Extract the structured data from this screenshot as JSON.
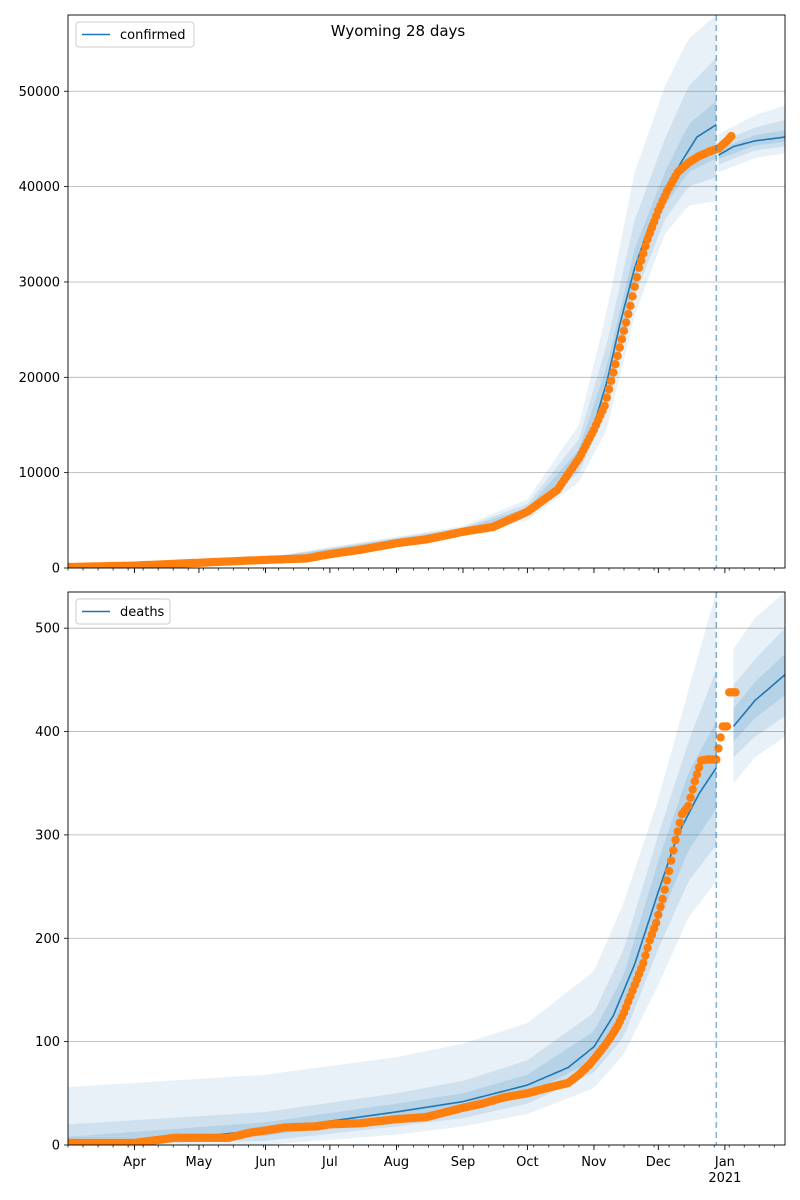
{
  "title": "Wyoming 28 days",
  "colors": {
    "model": "#1f77b4",
    "observed": "#ff7f0e",
    "grid": "#b0b0b0",
    "band": "#1f77b4"
  },
  "x_axis": {
    "range": [
      "2020-03-01",
      "2021-01-29"
    ],
    "month_ticks": [
      {
        "date": "2020-04-01",
        "label": "Apr"
      },
      {
        "date": "2020-05-01",
        "label": "May"
      },
      {
        "date": "2020-06-01",
        "label": "Jun"
      },
      {
        "date": "2020-07-01",
        "label": "Jul"
      },
      {
        "date": "2020-08-01",
        "label": "Aug"
      },
      {
        "date": "2020-09-01",
        "label": "Sep"
      },
      {
        "date": "2020-10-01",
        "label": "Oct"
      },
      {
        "date": "2020-11-01",
        "label": "Nov"
      },
      {
        "date": "2020-12-01",
        "label": "Dec"
      },
      {
        "date": "2021-01-01",
        "label": "Jan"
      }
    ],
    "year_label": "2021",
    "forecast_start": "2020-12-28"
  },
  "chart_data": [
    {
      "type": "line",
      "legend": "confirmed",
      "legend_position": "top-left",
      "grid": true,
      "ylim": [
        0,
        58000
      ],
      "yticks": [
        0,
        10000,
        20000,
        30000,
        40000,
        50000
      ],
      "ytick_labels": [
        "0",
        "10000",
        "20000",
        "30000",
        "40000",
        "50000"
      ],
      "model_median": [
        [
          "2020-03-01",
          50
        ],
        [
          "2020-04-01",
          250
        ],
        [
          "2020-05-01",
          650
        ],
        [
          "2020-06-01",
          900
        ],
        [
          "2020-07-01",
          1500
        ],
        [
          "2020-08-01",
          2800
        ],
        [
          "2020-09-01",
          4000
        ],
        [
          "2020-09-15",
          4400
        ],
        [
          "2020-10-01",
          6000
        ],
        [
          "2020-10-15",
          8500
        ],
        [
          "2020-10-25",
          11500
        ],
        [
          "2020-11-01",
          15000
        ],
        [
          "2020-11-07",
          19500
        ],
        [
          "2020-11-13",
          25500
        ],
        [
          "2020-11-20",
          31500
        ],
        [
          "2020-11-27",
          36000
        ],
        [
          "2020-12-04",
          39500
        ],
        [
          "2020-12-12",
          42700
        ],
        [
          "2020-12-19",
          45200
        ],
        [
          "2020-12-28",
          46500
        ],
        [
          "2020-12-29",
          43300
        ],
        [
          "2021-01-05",
          44200
        ],
        [
          "2021-01-15",
          44800
        ],
        [
          "2021-01-29",
          45200
        ]
      ],
      "bands": [
        {
          "opacity": 0.1,
          "points": [
            [
              "2020-03-01",
              0,
              150
            ],
            [
              "2020-06-01",
              700,
              1100
            ],
            [
              "2020-09-01",
              3600,
              4400
            ],
            [
              "2020-10-01",
              5000,
              7200
            ],
            [
              "2020-10-25",
              9000,
              15000
            ],
            [
              "2020-11-07",
              14500,
              27000
            ],
            [
              "2020-11-20",
              26500,
              41500
            ],
            [
              "2020-12-04",
              35000,
              50500
            ],
            [
              "2020-12-15",
              38000,
              55500
            ],
            [
              "2020-12-28",
              38500,
              58000
            ],
            [
              "2020-12-29",
              41500,
              45500
            ],
            [
              "2021-01-15",
              43000,
              47500
            ],
            [
              "2021-01-29",
              43500,
              48500
            ]
          ]
        },
        {
          "opacity": 0.12,
          "points": [
            [
              "2020-03-01",
              10,
              100
            ],
            [
              "2020-06-01",
              750,
              1050
            ],
            [
              "2020-09-01",
              3750,
              4250
            ],
            [
              "2020-10-01",
              5400,
              6700
            ],
            [
              "2020-10-25",
              10000,
              13500
            ],
            [
              "2020-11-07",
              16500,
              23500
            ],
            [
              "2020-11-20",
              28500,
              36500
            ],
            [
              "2020-12-04",
              36500,
              45000
            ],
            [
              "2020-12-15",
              40000,
              50500
            ],
            [
              "2020-12-28",
              41000,
              53500
            ],
            [
              "2020-12-29",
              42300,
              44600
            ],
            [
              "2021-01-15",
              43800,
              46200
            ],
            [
              "2021-01-29",
              44200,
              47000
            ]
          ]
        },
        {
          "opacity": 0.14,
          "points": [
            [
              "2020-03-01",
              30,
              70
            ],
            [
              "2020-06-01",
              820,
              980
            ],
            [
              "2020-09-01",
              3880,
              4120
            ],
            [
              "2020-10-01",
              5700,
              6300
            ],
            [
              "2020-10-25",
              10800,
              12400
            ],
            [
              "2020-11-07",
              18000,
              21200
            ],
            [
              "2020-11-20",
              30000,
              33500
            ],
            [
              "2020-12-04",
              38000,
              41500
            ],
            [
              "2020-12-15",
              41500,
              46500
            ],
            [
              "2020-12-28",
              43000,
              49000
            ],
            [
              "2020-12-29",
              42900,
              43900
            ],
            [
              "2021-01-15",
              44300,
              45400
            ],
            [
              "2021-01-29",
              44700,
              45900
            ]
          ]
        }
      ],
      "observed": [
        [
          "2020-03-01",
          100
        ],
        [
          "2020-04-01",
          250
        ],
        [
          "2020-05-01",
          550
        ],
        [
          "2020-06-01",
          850
        ],
        [
          "2020-06-20",
          1000
        ],
        [
          "2020-07-01",
          1450
        ],
        [
          "2020-07-15",
          1900
        ],
        [
          "2020-08-01",
          2600
        ],
        [
          "2020-08-15",
          3000
        ],
        [
          "2020-09-01",
          3800
        ],
        [
          "2020-09-15",
          4300
        ],
        [
          "2020-10-01",
          5900
        ],
        [
          "2020-10-15",
          8200
        ],
        [
          "2020-10-25",
          11500
        ],
        [
          "2020-11-01",
          14500
        ],
        [
          "2020-11-06",
          17000
        ],
        [
          "2020-11-10",
          20500
        ],
        [
          "2020-11-14",
          24000
        ],
        [
          "2020-11-18",
          27500
        ],
        [
          "2020-11-22",
          31500
        ],
        [
          "2020-11-26",
          34500
        ],
        [
          "2020-12-01",
          37500
        ],
        [
          "2020-12-05",
          39500
        ],
        [
          "2020-12-10",
          41500
        ],
        [
          "2020-12-15",
          42500
        ],
        [
          "2020-12-20",
          43200
        ],
        [
          "2020-12-25",
          43700
        ],
        [
          "2020-12-29",
          44000
        ],
        [
          "2021-01-02",
          44800
        ],
        [
          "2021-01-04",
          45300
        ]
      ]
    },
    {
      "type": "line",
      "legend": "deaths",
      "legend_position": "top-left",
      "grid": true,
      "ylim": [
        0,
        535
      ],
      "yticks": [
        0,
        100,
        200,
        300,
        400,
        500
      ],
      "ytick_labels": [
        "0",
        "100",
        "200",
        "300",
        "400",
        "500"
      ],
      "model_median": [
        [
          "2020-03-01",
          0
        ],
        [
          "2020-04-01",
          2
        ],
        [
          "2020-05-01",
          8
        ],
        [
          "2020-06-01",
          15
        ],
        [
          "2020-07-01",
          23
        ],
        [
          "2020-08-01",
          32
        ],
        [
          "2020-09-01",
          42
        ],
        [
          "2020-10-01",
          58
        ],
        [
          "2020-10-20",
          75
        ],
        [
          "2020-11-01",
          95
        ],
        [
          "2020-11-10",
          125
        ],
        [
          "2020-11-20",
          175
        ],
        [
          "2020-12-01",
          245
        ],
        [
          "2020-12-10",
          300
        ],
        [
          "2020-12-20",
          340
        ],
        [
          "2020-12-28",
          365
        ],
        [
          "2021-01-05",
          405
        ],
        [
          "2021-01-15",
          430
        ],
        [
          "2021-01-29",
          455
        ]
      ],
      "bands": [
        {
          "opacity": 0.1,
          "points": [
            [
              "2020-03-01",
              0,
              56
            ],
            [
              "2020-06-01",
              0,
              68
            ],
            [
              "2020-08-01",
              10,
              85
            ],
            [
              "2020-09-01",
              18,
              98
            ],
            [
              "2020-10-01",
              30,
              118
            ],
            [
              "2020-11-01",
              55,
              168
            ],
            [
              "2020-11-15",
              88,
              235
            ],
            [
              "2020-12-01",
              155,
              335
            ],
            [
              "2020-12-15",
              220,
              440
            ],
            [
              "2020-12-28",
              255,
              535
            ],
            [
              "2021-01-05",
              350,
              480
            ],
            [
              "2021-01-15",
              375,
              510
            ],
            [
              "2021-01-29",
              395,
              535
            ]
          ]
        },
        {
          "opacity": 0.12,
          "points": [
            [
              "2020-03-01",
              0,
              20
            ],
            [
              "2020-06-01",
              4,
              32
            ],
            [
              "2020-08-01",
              18,
              50
            ],
            [
              "2020-09-01",
              26,
              62
            ],
            [
              "2020-10-01",
              40,
              82
            ],
            [
              "2020-11-01",
              70,
              128
            ],
            [
              "2020-11-15",
              105,
              190
            ],
            [
              "2020-12-01",
              190,
              300
            ],
            [
              "2020-12-15",
              255,
              390
            ],
            [
              "2020-12-28",
              290,
              460
            ],
            [
              "2021-01-05",
              375,
              445
            ],
            [
              "2021-01-15",
              395,
              470
            ],
            [
              "2021-01-29",
              415,
              500
            ]
          ]
        },
        {
          "opacity": 0.14,
          "points": [
            [
              "2020-03-01",
              0,
              8
            ],
            [
              "2020-06-01",
              9,
              22
            ],
            [
              "2020-08-01",
              25,
              40
            ],
            [
              "2020-09-01",
              34,
              50
            ],
            [
              "2020-10-01",
              49,
              68
            ],
            [
              "2020-11-01",
              82,
              110
            ],
            [
              "2020-11-15",
              125,
              165
            ],
            [
              "2020-12-01",
              215,
              275
            ],
            [
              "2020-12-15",
              285,
              360
            ],
            [
              "2020-12-28",
              325,
              410
            ],
            [
              "2021-01-05",
              390,
              422
            ],
            [
              "2021-01-15",
              413,
              448
            ],
            [
              "2021-01-29",
              435,
              475
            ]
          ]
        }
      ],
      "observed": [
        [
          "2020-03-01",
          2
        ],
        [
          "2020-04-01",
          2
        ],
        [
          "2020-04-20",
          7
        ],
        [
          "2020-05-01",
          7
        ],
        [
          "2020-05-15",
          7
        ],
        [
          "2020-05-25",
          12
        ],
        [
          "2020-06-01",
          14
        ],
        [
          "2020-06-10",
          17
        ],
        [
          "2020-06-25",
          18
        ],
        [
          "2020-07-01",
          20
        ],
        [
          "2020-07-15",
          21
        ],
        [
          "2020-08-01",
          25
        ],
        [
          "2020-08-15",
          27
        ],
        [
          "2020-09-01",
          36
        ],
        [
          "2020-09-10",
          40
        ],
        [
          "2020-09-20",
          46
        ],
        [
          "2020-10-01",
          50
        ],
        [
          "2020-10-10",
          55
        ],
        [
          "2020-10-20",
          60
        ],
        [
          "2020-10-25",
          68
        ],
        [
          "2020-10-30",
          78
        ],
        [
          "2020-11-03",
          88
        ],
        [
          "2020-11-06",
          96
        ],
        [
          "2020-11-09",
          105
        ],
        [
          "2020-11-12",
          115
        ],
        [
          "2020-11-15",
          128
        ],
        [
          "2020-11-18",
          144
        ],
        [
          "2020-11-21",
          160
        ],
        [
          "2020-11-24",
          176
        ],
        [
          "2020-11-27",
          198
        ],
        [
          "2020-11-30",
          215
        ],
        [
          "2020-12-03",
          238
        ],
        [
          "2020-12-06",
          265
        ],
        [
          "2020-12-09",
          295
        ],
        [
          "2020-12-12",
          320
        ],
        [
          "2020-12-15",
          328
        ],
        [
          "2020-12-18",
          352
        ],
        [
          "2020-12-21",
          372
        ],
        [
          "2020-12-24",
          373
        ],
        [
          "2020-12-28",
          373
        ],
        [
          "2020-12-31",
          405
        ],
        [
          "2021-01-02",
          405
        ],
        [
          "2021-01-03",
          438
        ],
        [
          "2021-01-06",
          438
        ]
      ]
    }
  ]
}
